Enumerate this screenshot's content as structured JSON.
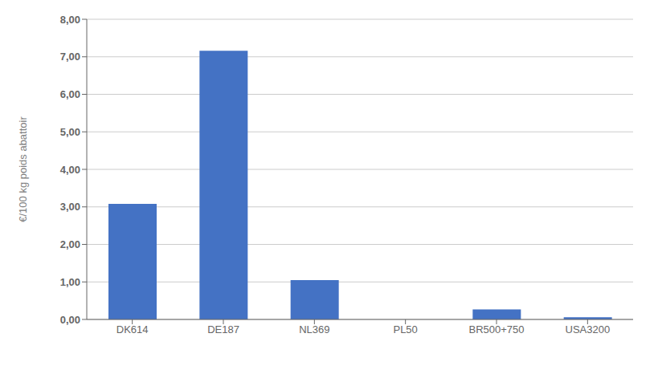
{
  "chart_data": {
    "type": "bar",
    "categories": [
      "DK614",
      "DE187",
      "NL369",
      "PL50",
      "BR500+750",
      "USA3200"
    ],
    "values": [
      3.08,
      7.16,
      1.05,
      0.0,
      0.27,
      0.06
    ],
    "color": "#4472c4",
    "ylabel": "€/100 kg poids abattoir",
    "ylim": [
      0,
      8.0
    ],
    "yticks": [
      {
        "value": 0.0,
        "label": "0,00"
      },
      {
        "value": 1.0,
        "label": "1,00"
      },
      {
        "value": 2.0,
        "label": "2,00"
      },
      {
        "value": 3.0,
        "label": "3,00"
      },
      {
        "value": 4.0,
        "label": "4,00"
      },
      {
        "value": 5.0,
        "label": "5,00"
      },
      {
        "value": 6.0,
        "label": "6,00"
      },
      {
        "value": 7.0,
        "label": "7,00"
      },
      {
        "value": 8.0,
        "label": "8,00"
      }
    ],
    "grid": true
  }
}
